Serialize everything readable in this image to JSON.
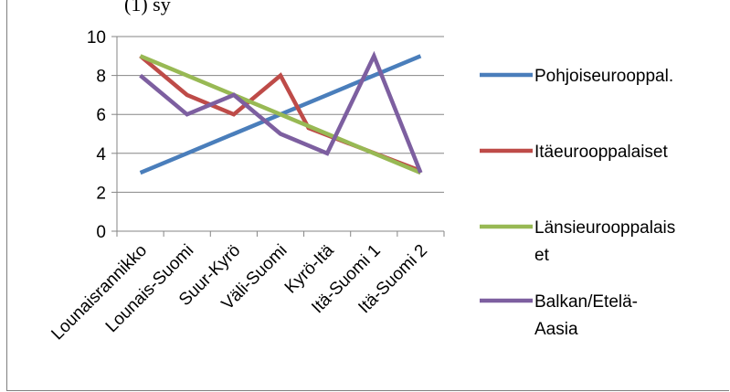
{
  "header_fragment": "(1) sy",
  "chart_data": {
    "type": "line",
    "categories": [
      "Lounaisrannikko",
      "Lounais-Suomi",
      "Suur-Kyrö",
      "Väli-Suomi",
      "Kyrö-Itä",
      "Itä-Suomi 1",
      "Itä-Suomi 2"
    ],
    "ylim": [
      0,
      10
    ],
    "yticks": [
      0,
      2,
      4,
      6,
      8,
      10
    ],
    "grid": true,
    "legend": "right",
    "series": [
      {
        "name": "Pohjoiseurooppal.",
        "color": "#4a7ebb",
        "legend_lines": [
          "Pohjoiseurooppal."
        ],
        "points": [
          [
            0,
            3
          ],
          [
            1,
            4
          ],
          [
            2,
            5
          ],
          [
            3,
            6
          ],
          [
            4,
            7
          ],
          [
            5,
            8
          ],
          [
            6,
            9
          ]
        ]
      },
      {
        "name": "Itäeurooppalaiset",
        "color": "#be4b48",
        "legend_lines": [
          "Itäeurooppalaiset"
        ],
        "points": [
          [
            0,
            9
          ],
          [
            1,
            7
          ],
          [
            2,
            6
          ],
          [
            2.35,
            6.7
          ],
          [
            3,
            8
          ],
          [
            3.6,
            5.3
          ],
          [
            6,
            3.1
          ]
        ]
      },
      {
        "name": "Länsieurooppalaiset",
        "color": "#98b954",
        "legend_lines": [
          "Länsieurooppalais",
          "et"
        ],
        "points": [
          [
            0,
            9
          ],
          [
            6,
            3
          ]
        ]
      },
      {
        "name": "Balkan/Etelä-Aasia",
        "color": "#7d5fa0",
        "legend_lines": [
          "Balkan/Etelä-",
          "Aasia"
        ],
        "points": [
          [
            0,
            8
          ],
          [
            1,
            6
          ],
          [
            2,
            7
          ],
          [
            3,
            5
          ],
          [
            4,
            4
          ],
          [
            5,
            9
          ],
          [
            6,
            3
          ]
        ]
      }
    ]
  }
}
